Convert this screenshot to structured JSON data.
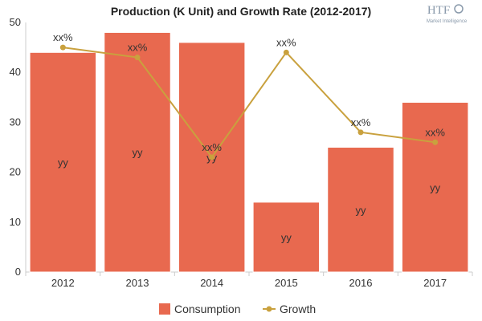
{
  "chart_data": {
    "type": "bar",
    "title": "Production (K Unit) and Growth Rate (2012-2017)",
    "categories": [
      "2012",
      "2013",
      "2014",
      "2015",
      "2016",
      "2017"
    ],
    "ylim": [
      0,
      50
    ],
    "yticks": [
      0,
      10,
      20,
      30,
      40,
      50
    ],
    "grid": false,
    "legend_position": "bottom",
    "series": [
      {
        "name": "Consumption",
        "type": "bar",
        "color": "#e8694f",
        "values": [
          44,
          48,
          46,
          14,
          25,
          34
        ],
        "labels": [
          "yy",
          "yy",
          "yy",
          "yy",
          "yy",
          "yy"
        ]
      },
      {
        "name": "Growth",
        "type": "line",
        "color": "#c9a13e",
        "values": [
          45,
          43,
          23,
          44,
          28,
          26
        ],
        "labels": [
          "xx%",
          "xx%",
          "xx%",
          "xx%",
          "xx%",
          "xx%"
        ]
      }
    ]
  },
  "watermark": {
    "brand": "HTF",
    "sub": "Market Intelligence"
  }
}
